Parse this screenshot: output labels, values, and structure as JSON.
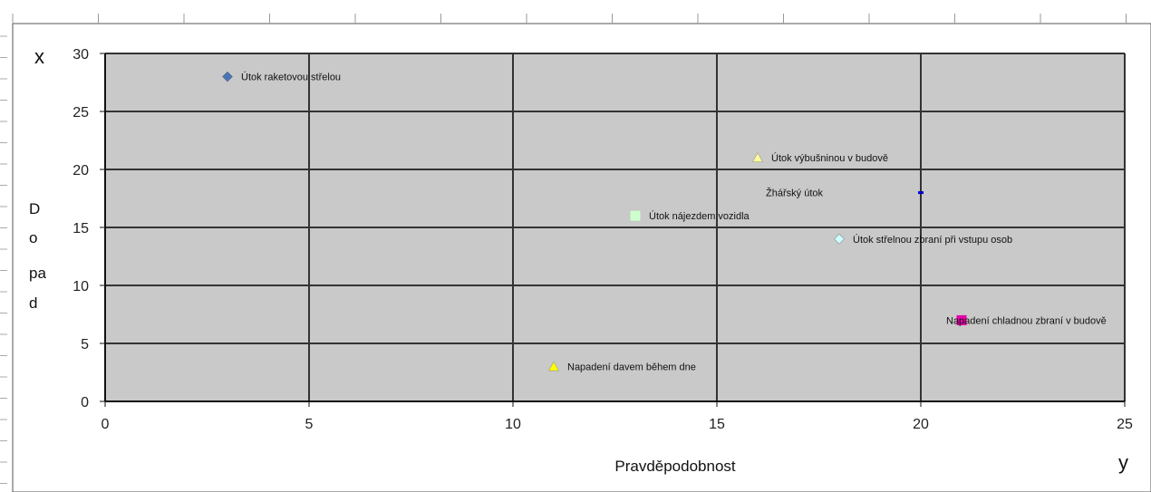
{
  "chart_data": {
    "type": "scatter",
    "title": "",
    "xlabel": "Pravděpodobnost",
    "ylabel_lines": [
      "D",
      "o",
      "pa",
      "d"
    ],
    "corner_x_label": "x",
    "corner_y_label": "y",
    "xlim": [
      0,
      25
    ],
    "ylim": [
      0,
      30
    ],
    "xticks": [
      "0",
      "5",
      "10",
      "15",
      "20",
      "25"
    ],
    "yticks": [
      "0",
      "5",
      "10",
      "15",
      "20",
      "25",
      "30"
    ],
    "grid": true,
    "legend": "none",
    "plot_background": "#c9c9c9",
    "grid_color": "#333333",
    "points": [
      {
        "label": "Útok raketovou střelou",
        "x": 3,
        "y": 28,
        "marker": "diamond",
        "color": "#4a74b4"
      },
      {
        "label": "Útok výbušninou v budově",
        "x": 16,
        "y": 21,
        "marker": "triangle",
        "color": "#ffff99"
      },
      {
        "label": "Žhářský útok",
        "x": 20,
        "y": 18,
        "marker": "dash",
        "color": "#0000cc",
        "label_side": "left"
      },
      {
        "label": "Útok nájezdem vozidla",
        "x": 13,
        "y": 16,
        "marker": "square",
        "color": "#ccffcc"
      },
      {
        "label": "Útok střelnou zbraní při vstupu osob",
        "x": 18,
        "y": 14,
        "marker": "diamond",
        "color": "#ccffff"
      },
      {
        "label": "Napadení chladnou zbraní v budově",
        "x": 21,
        "y": 7,
        "marker": "square",
        "color": "#e600a8",
        "label_offset": "overlap"
      },
      {
        "label": "Napadení davem během dne",
        "x": 11,
        "y": 3,
        "marker": "triangle",
        "color": "#ffff00"
      }
    ]
  }
}
